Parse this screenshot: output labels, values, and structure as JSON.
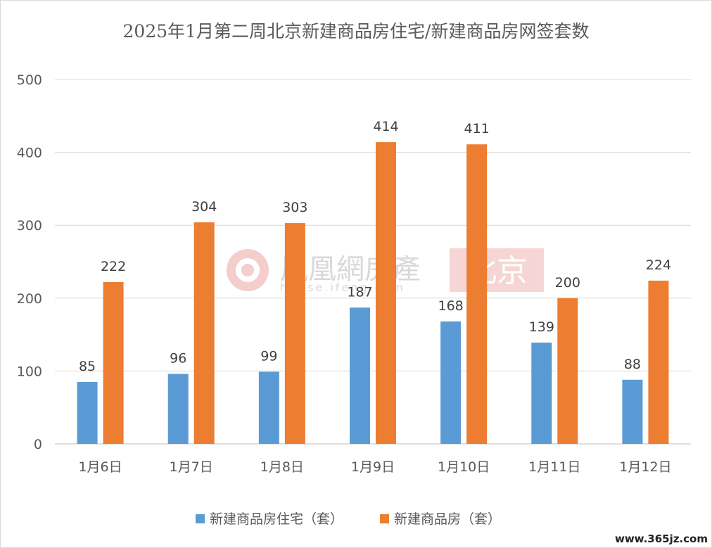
{
  "chart_data": {
    "type": "bar",
    "title": "2025年1月第二周北京新建商品房住宅/新建商品房网签套数",
    "categories": [
      "1月6日",
      "1月7日",
      "1月8日",
      "1月9日",
      "1月10日",
      "1月11日",
      "1月12日"
    ],
    "series": [
      {
        "name": "新建商品房住宅（套）",
        "color": "#5b9bd5",
        "values": [
          85,
          96,
          99,
          187,
          168,
          139,
          88
        ]
      },
      {
        "name": "新建商品房（套）",
        "color": "#ed7d31",
        "values": [
          222,
          304,
          303,
          414,
          411,
          200,
          224
        ]
      }
    ],
    "ylim": [
      0,
      500
    ],
    "yticks": [
      0,
      100,
      200,
      300,
      400,
      500
    ],
    "grid": true,
    "legend_position": "bottom"
  },
  "watermark": {
    "brand": "鳳凰網房產",
    "domain": "house.ifeng.com",
    "city": "北京"
  },
  "footer_site": "www.365jz.com"
}
